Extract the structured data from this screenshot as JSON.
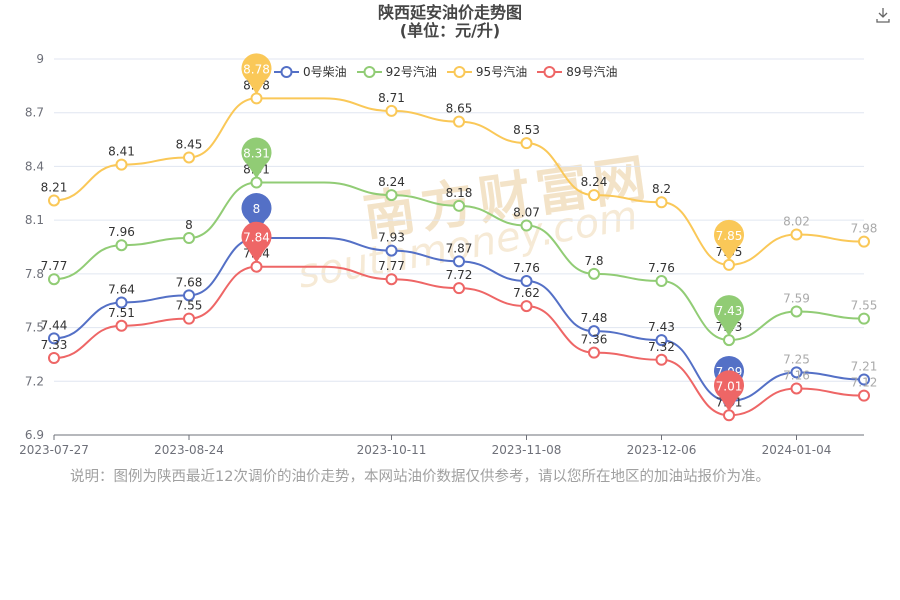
{
  "title": "陕西延安油价走势图",
  "subtitle": "(单位：元/升)",
  "note": "说明：图例为陕西最近12次调价的油价走势，本网站油价数据仅供参考，请以您所在地区的加油站报价为准。",
  "watermark": "南方财富网",
  "watermark_url": "southmoney.com",
  "download_icon": "download-icon",
  "colors": {
    "diesel0": "#5470c6",
    "gas92": "#91cc75",
    "gas95": "#fac858",
    "gas89": "#ee6666",
    "axis": "#6e7079",
    "grid": "#e0e6f1"
  },
  "chart_data": {
    "type": "line",
    "title": "陕西延安油价走势图",
    "subtitle": "(单位：元/升)",
    "x": [
      "2023-07-27",
      "2023-08-10",
      "2023-08-24",
      "2023-09-06",
      "2023-09-20",
      "2023-10-11",
      "2023-10-25",
      "2023-11-08",
      "2023-11-22",
      "2023-12-06",
      "2023-12-20",
      "2024-01-04",
      "2024-01-17"
    ],
    "x_tick_labels": [
      "2023-07-27",
      "2023-08-24",
      "2023-10-11",
      "2023-11-08",
      "2023-12-06",
      "2024-01-04"
    ],
    "x_tick_indices": [
      0,
      2,
      5,
      7,
      9,
      11
    ],
    "ylim": [
      6.9,
      9
    ],
    "y_ticks": [
      6.9,
      7.2,
      7.5,
      7.8,
      8.1,
      8.4,
      8.7,
      9
    ],
    "y_tick_labels": [
      "6.9",
      "7.2",
      "7.5",
      "7.8",
      "8.1",
      "8.4",
      "8.7",
      "9"
    ],
    "legend_position": "top",
    "grid": true,
    "series": [
      {
        "name": "0号柴油",
        "color": "#5470c6",
        "values": [
          7.44,
          7.64,
          7.68,
          8.0,
          8.0,
          7.93,
          7.87,
          7.76,
          7.48,
          7.43,
          7.09,
          7.25,
          7.21
        ],
        "labels": [
          "7.44",
          "7.64",
          "7.68",
          "",
          "",
          "7.93",
          "7.87",
          "7.76",
          "7.48",
          "7.43",
          "",
          "7.25",
          "7.21"
        ],
        "max_pin": {
          "index": 3,
          "label": "8"
        },
        "min_pin": {
          "index": 10,
          "label": "7.09"
        }
      },
      {
        "name": "92号汽油",
        "color": "#91cc75",
        "values": [
          7.77,
          7.96,
          8.0,
          8.31,
          8.31,
          8.24,
          8.18,
          8.07,
          7.8,
          7.76,
          7.43,
          7.59,
          7.55
        ],
        "labels": [
          "7.77",
          "7.96",
          "8",
          "8.31",
          "",
          "8.24",
          "8.18",
          "8.07",
          "7.8",
          "7.76",
          "7.43",
          "7.59",
          "7.55"
        ],
        "max_pin": {
          "index": 3,
          "label": "8.31"
        },
        "min_pin": {
          "index": 10,
          "label": "7.43"
        }
      },
      {
        "name": "95号汽油",
        "color": "#fac858",
        "values": [
          8.21,
          8.41,
          8.45,
          8.78,
          8.78,
          8.71,
          8.65,
          8.53,
          8.24,
          8.2,
          7.85,
          8.02,
          7.98
        ],
        "labels": [
          "8.21",
          "8.41",
          "8.45",
          "8.78",
          "",
          "8.71",
          "8.65",
          "8.53",
          "8.24",
          "8.2",
          "7.85",
          "8.02",
          "7.98"
        ],
        "max_pin": {
          "index": 3,
          "label": "8.78"
        },
        "min_pin": {
          "index": 10,
          "label": "7.85"
        }
      },
      {
        "name": "89号汽油",
        "color": "#ee6666",
        "values": [
          7.33,
          7.51,
          7.55,
          7.84,
          7.84,
          7.77,
          7.72,
          7.62,
          7.36,
          7.32,
          7.01,
          7.16,
          7.12
        ],
        "labels": [
          "7.33",
          "7.51",
          "7.55",
          "7.84",
          "",
          "7.77",
          "7.72",
          "7.62",
          "7.36",
          "7.32",
          "7.01",
          "7.16",
          "7.12"
        ],
        "max_pin": {
          "index": 3,
          "label": "7.84"
        },
        "min_pin": {
          "index": 10,
          "label": "7.01"
        }
      }
    ]
  }
}
